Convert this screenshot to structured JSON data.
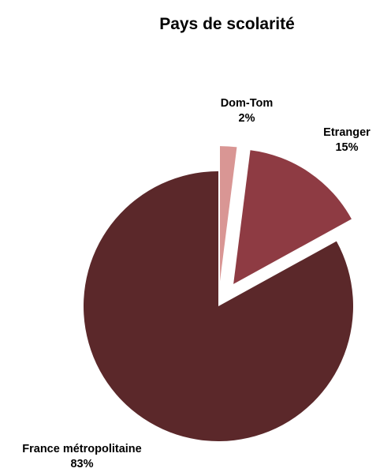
{
  "chart_data": {
    "type": "pie",
    "title": "Pays de scolarité",
    "slices": [
      {
        "label": "France métropolitaine",
        "percent_label": "83%",
        "value": 83,
        "color": "#5b282a"
      },
      {
        "label": "Dom-Tom",
        "percent_label": "2%",
        "value": 2,
        "color": "#d99694"
      },
      {
        "label": "Etranger",
        "percent_label": "15%",
        "value": 15,
        "color": "#8e3b43"
      }
    ]
  }
}
